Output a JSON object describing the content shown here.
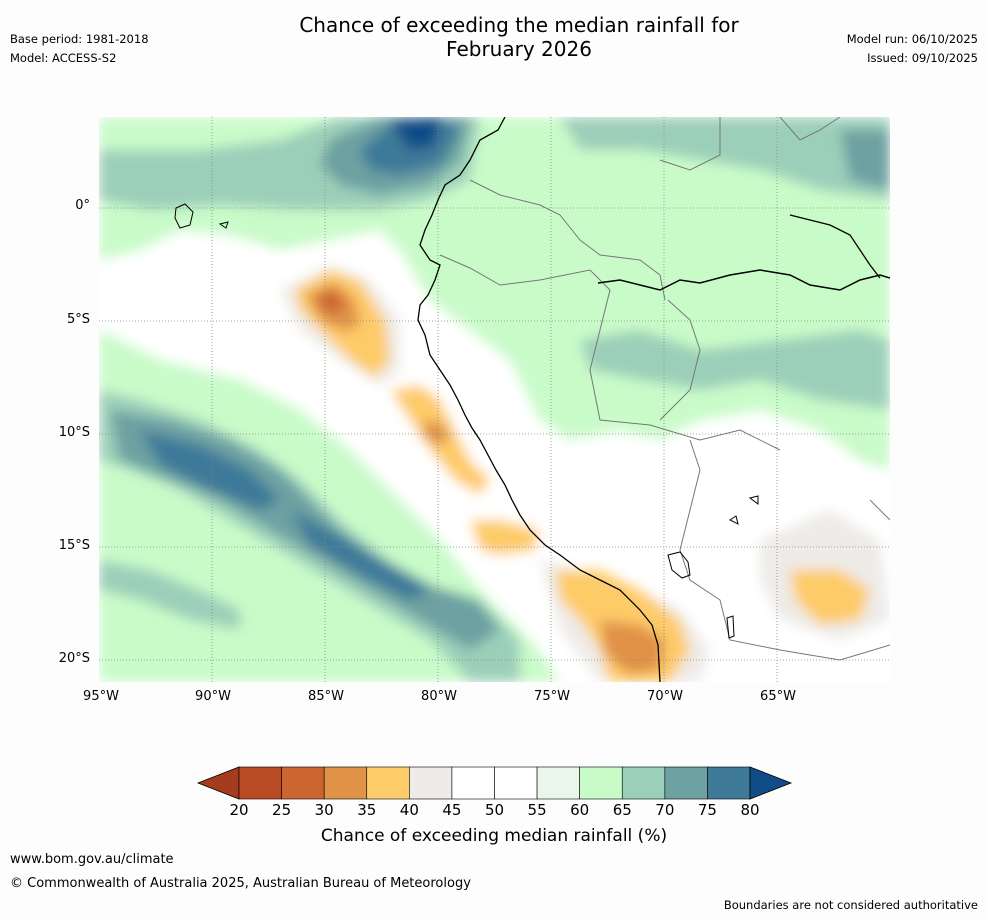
{
  "header": {
    "title_line1": "Chance of exceeding the median rainfall for",
    "title_line2": "February 2026",
    "base_period": "Base period: 1981-2018",
    "model": "Model: ACCESS-S2",
    "model_run": "Model run: 06/10/2025",
    "issued": "Issued: 09/10/2025"
  },
  "map": {
    "lat_labels": [
      "0°",
      "5°S",
      "10°S",
      "15°S",
      "20°S"
    ],
    "lon_labels": [
      "95°W",
      "90°W",
      "85°W",
      "80°W",
      "75°W",
      "70°W",
      "65°W"
    ]
  },
  "colorbar": {
    "ticks": [
      "20",
      "25",
      "30",
      "35",
      "40",
      "45",
      "50",
      "55",
      "60",
      "65",
      "70",
      "75",
      "80"
    ],
    "colors": [
      "#a63c1e",
      "#b84a24",
      "#cc6530",
      "#e09246",
      "#fecb69",
      "#eeebe8",
      "#ffffff",
      "#ffffff",
      "#ebf6ea",
      "#c9fbc9",
      "#9ccfb9",
      "#6da1a2",
      "#3e7998",
      "#104c88"
    ],
    "label": "Chance of exceeding median rainfall (%)"
  },
  "footer": {
    "website": "www.bom.gov.au/climate",
    "copyright": "© Commonwealth of Australia 2025, Australian Bureau of Meteorology",
    "disclaimer": "Boundaries are not considered authoritative"
  }
}
